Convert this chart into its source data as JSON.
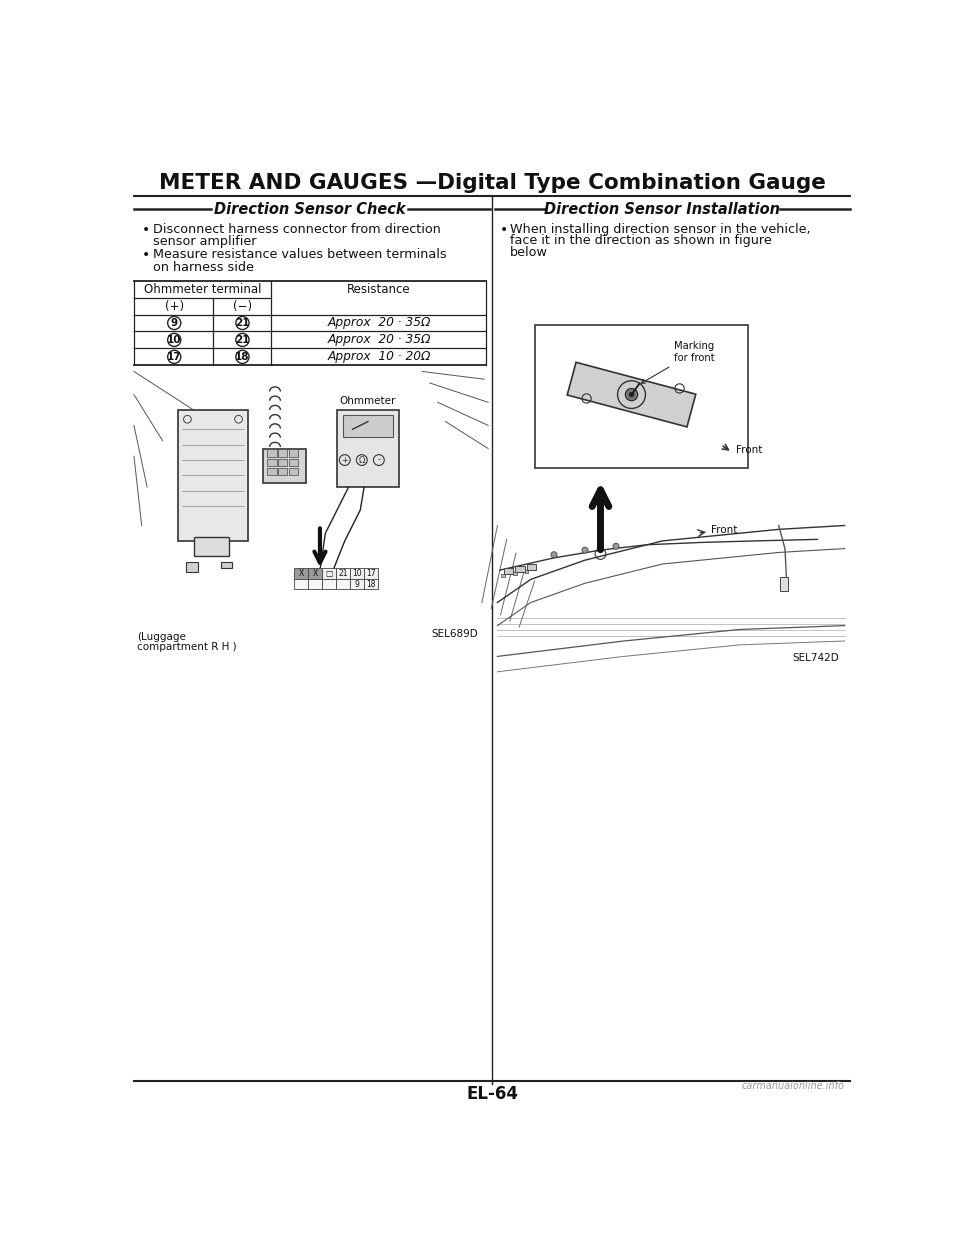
{
  "title": "METER AND GAUGES —Digital Type Combination Gauge",
  "left_section_title": "Direction Sensor Check",
  "right_section_title": "Direction Sensor Installation",
  "bullet1_line1": "Disconnect harness connector from direction",
  "bullet1_line2": "sensor amplifier",
  "bullet2_line1": "Measure resistance values between terminals",
  "bullet2_line2": "on harness side",
  "right_bullet_line1": "When installing direction sensor in the vehicle,",
  "right_bullet_line2": "face it in the direction as shown in figure",
  "right_bullet_line3": "below",
  "table_header_col1": "Ohmmeter terminal",
  "table_subheader_plus": "(+)",
  "table_subheader_minus": "(−)",
  "table_header_col2": "Resistance",
  "table_rows": [
    {
      "plus": "9",
      "minus": "21",
      "resistance": "Approx  20 · 35Ω"
    },
    {
      "plus": "10",
      "minus": "21",
      "resistance": "Approx  20 · 35Ω"
    },
    {
      "plus": "17",
      "minus": "18",
      "resistance": "Approx  10 · 20Ω"
    }
  ],
  "left_img_caption1": "(Luggage",
  "left_img_caption2": "compartment R H )",
  "left_img_label": "SEL689D",
  "right_img_label": "SEL742D",
  "ohmmeter_label": "Ohmmeter",
  "marking_label": "Marking\nfor front",
  "front_label": "Front",
  "page_number": "EL-64",
  "watermark": "carmanualonline.info",
  "bg_color": "#ffffff",
  "text_color": "#111111",
  "line_color": "#222222"
}
